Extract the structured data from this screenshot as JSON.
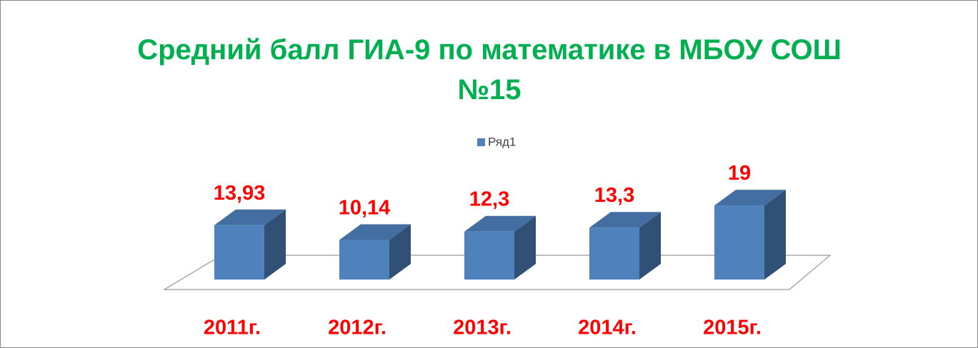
{
  "chart_data": {
    "type": "bar3d",
    "title": "Средний балл ГИА-9 по математике в МБОУ СОШ №15",
    "categories": [
      "2011г.",
      "2012г.",
      "2013г.",
      "2014г.",
      "2015г."
    ],
    "series": [
      {
        "name": "Ряд1",
        "color": "#4f81bd",
        "values": [
          13.93,
          10.14,
          12.3,
          13.3,
          19
        ],
        "value_labels": [
          "13,93",
          "10,14",
          "12,3",
          "13,3",
          "19"
        ]
      }
    ],
    "legend": "top"
  }
}
